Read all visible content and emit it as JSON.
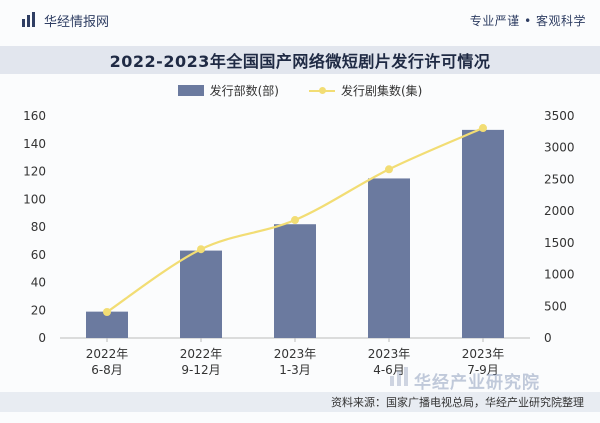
{
  "header": {
    "brand_name": "华经情报网",
    "slogan": "专业严谨 • 客观科学"
  },
  "watermark_text": "华经产业研究院",
  "source_text": "资料来源：国家广播电视总局，华经产业研究院整理",
  "chart_data": {
    "type": "bar",
    "title": "2022-2023年全国国产网络微短剧片发行许可情况",
    "categories": [
      [
        "2022年",
        "6-8月"
      ],
      [
        "2022年",
        "9-12月"
      ],
      [
        "2023年",
        "1-3月"
      ],
      [
        "2023年",
        "4-6月"
      ],
      [
        "2023年",
        "7-9月"
      ]
    ],
    "series": [
      {
        "name": "发行部数(部)",
        "type": "bar",
        "axis": "left",
        "values": [
          19,
          63,
          82,
          115,
          150
        ],
        "color": "#6b7a9f"
      },
      {
        "name": "发行剧集数(集)",
        "type": "line",
        "axis": "right",
        "values": [
          410,
          1400,
          1860,
          2660,
          3310
        ],
        "color": "#f2dd74"
      }
    ],
    "y_left": {
      "min": 0,
      "max": 160,
      "ticks": [
        0,
        20,
        40,
        60,
        80,
        100,
        120,
        140,
        160
      ]
    },
    "y_right": {
      "min": 0,
      "max": 3500,
      "ticks": [
        0,
        500,
        1000,
        1500,
        2000,
        2500,
        3000,
        3500
      ]
    },
    "grid": false,
    "legend_position": "top-center"
  }
}
